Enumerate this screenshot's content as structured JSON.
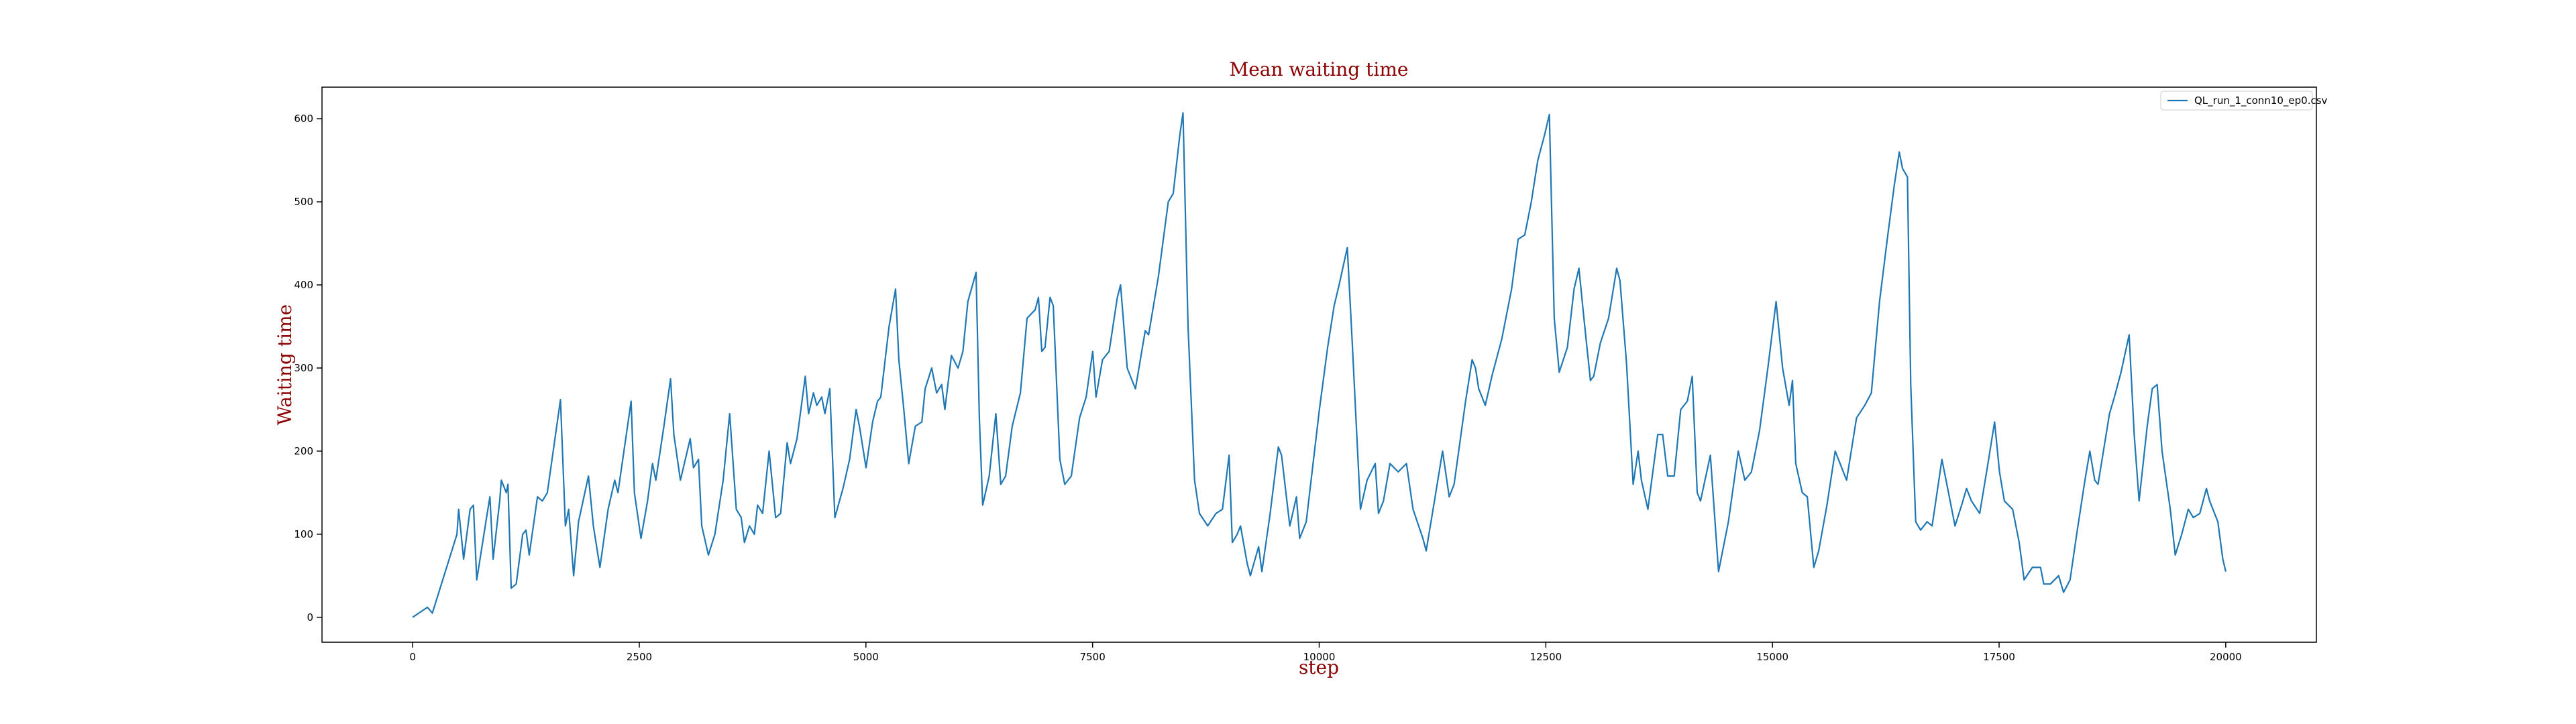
{
  "chart_data": {
    "type": "line",
    "title": "Mean waiting time",
    "x_label": "step",
    "y_label": "Waiting time",
    "x": [
      0,
      163,
      217,
      489,
      507,
      562,
      634,
      670,
      707,
      815,
      852,
      888,
      960,
      978,
      1033,
      1051,
      1087,
      1142,
      1214,
      1250,
      1286,
      1377,
      1431,
      1486,
      1631,
      1685,
      1721,
      1776,
      1830,
      1939,
      1993,
      2066,
      2156,
      2229,
      2265,
      2410,
      2446,
      2519,
      2591,
      2646,
      2682,
      2772,
      2845,
      2881,
      2954,
      3062,
      3098,
      3153,
      3189,
      3262,
      3334,
      3425,
      3497,
      3570,
      3624,
      3660,
      3715,
      3769,
      3805,
      3860,
      3932,
      3968,
      4004,
      4059,
      4131,
      4168,
      4240,
      4331,
      4367,
      4421,
      4458,
      4512,
      4548,
      4602,
      4657,
      4747,
      4820,
      4892,
      4928,
      5001,
      5074,
      5128,
      5164,
      5255,
      5327,
      5363,
      5418,
      5472,
      5545,
      5617,
      5653,
      5726,
      5780,
      5835,
      5871,
      5943,
      6016,
      6070,
      6125,
      6215,
      6251,
      6288,
      6360,
      6433,
      6487,
      6541,
      6614,
      6704,
      6777,
      6867,
      6903,
      6940,
      6976,
      7031,
      7067,
      7139,
      7193,
      7266,
      7357,
      7429,
      7502,
      7538,
      7610,
      7683,
      7773,
      7809,
      7882,
      7936,
      7973,
      8081,
      8118,
      8226,
      8335,
      8390,
      8462,
      8498,
      8553,
      8625,
      8679,
      8770,
      8861,
      8933,
      9006,
      9042,
      9096,
      9132,
      9205,
      9241,
      9332,
      9368,
      9459,
      9549,
      9585,
      9676,
      9749,
      9785,
      9857,
      10002,
      10093,
      10165,
      10220,
      10310,
      10365,
      10455,
      10528,
      10618,
      10654,
      10709,
      10781,
      10872,
      10963,
      11035,
      11144,
      11180,
      11271,
      11361,
      11434,
      11488,
      11615,
      11687,
      11724,
      11760,
      11832,
      11905,
      12014,
      12122,
      12195,
      12267,
      12340,
      12412,
      12485,
      12539,
      12593,
      12648,
      12738,
      12811,
      12865,
      12920,
      12992,
      13028,
      13101,
      13192,
      13282,
      13318,
      13391,
      13463,
      13518,
      13554,
      13626,
      13735,
      13789,
      13844,
      13916,
      13988,
      14061,
      14115,
      14170,
      14206,
      14315,
      14405,
      14514,
      14623,
      14695,
      14768,
      14858,
      14949,
      15040,
      15112,
      15184,
      15221,
      15257,
      15329,
      15384,
      15456,
      15510,
      15601,
      15692,
      15764,
      15818,
      15927,
      16018,
      16091,
      16181,
      16272,
      16344,
      16399,
      16435,
      16489,
      16525,
      16580,
      16634,
      16706,
      16761,
      16869,
      16942,
      17014,
      17087,
      17141,
      17195,
      17286,
      17377,
      17450,
      17504,
      17558,
      17649,
      17722,
      17776,
      17867,
      17957,
      17993,
      18066,
      18157,
      18211,
      18283,
      18356,
      18447,
      18501,
      18555,
      18591,
      18718,
      18772,
      18845,
      18935,
      18990,
      19044,
      19134,
      19189,
      19243,
      19297,
      19388,
      19443,
      19515,
      19587,
      19642,
      19714,
      19787,
      19823,
      19913,
      19968,
      20000
    ],
    "series": [
      {
        "name": "QL_run_1_conn10_ep0.csv",
        "color": "#1f77b4",
        "values": [
          0,
          12,
          5,
          100,
          130,
          70,
          130,
          135,
          45,
          120,
          145,
          70,
          140,
          165,
          150,
          160,
          35,
          40,
          100,
          105,
          75,
          145,
          140,
          150,
          262,
          110,
          130,
          50,
          115,
          170,
          110,
          60,
          130,
          165,
          150,
          260,
          150,
          95,
          140,
          185,
          165,
          230,
          287,
          220,
          165,
          215,
          180,
          190,
          110,
          75,
          100,
          165,
          245,
          130,
          120,
          90,
          110,
          100,
          135,
          125,
          200,
          160,
          120,
          125,
          210,
          185,
          215,
          290,
          245,
          270,
          255,
          265,
          245,
          275,
          120,
          155,
          190,
          250,
          230,
          180,
          235,
          260,
          265,
          350,
          395,
          310,
          250,
          185,
          230,
          235,
          275,
          300,
          270,
          280,
          250,
          315,
          300,
          320,
          380,
          415,
          240,
          135,
          170,
          245,
          160,
          170,
          230,
          270,
          360,
          370,
          385,
          320,
          325,
          385,
          375,
          190,
          160,
          170,
          240,
          265,
          320,
          265,
          310,
          320,
          385,
          400,
          300,
          285,
          275,
          345,
          340,
          410,
          500,
          510,
          580,
          607,
          350,
          165,
          125,
          110,
          125,
          130,
          195,
          90,
          100,
          110,
          65,
          50,
          85,
          55,
          125,
          205,
          195,
          110,
          145,
          95,
          115,
          250,
          325,
          375,
          400,
          445,
          330,
          130,
          165,
          185,
          125,
          140,
          185,
          175,
          185,
          130,
          95,
          80,
          140,
          200,
          145,
          160,
          260,
          310,
          300,
          275,
          255,
          290,
          335,
          395,
          455,
          460,
          500,
          550,
          580,
          605,
          360,
          295,
          325,
          395,
          420,
          360,
          285,
          290,
          330,
          360,
          420,
          405,
          305,
          160,
          200,
          165,
          130,
          220,
          220,
          170,
          170,
          250,
          260,
          290,
          150,
          140,
          195,
          55,
          115,
          200,
          165,
          175,
          225,
          300,
          380,
          300,
          255,
          285,
          185,
          150,
          145,
          60,
          80,
          135,
          200,
          180,
          165,
          240,
          255,
          270,
          380,
          460,
          520,
          560,
          540,
          530,
          280,
          115,
          105,
          115,
          110,
          190,
          150,
          110,
          135,
          155,
          140,
          125,
          185,
          235,
          175,
          140,
          130,
          90,
          45,
          60,
          60,
          40,
          40,
          50,
          30,
          45,
          100,
          165,
          200,
          165,
          160,
          245,
          265,
          295,
          340,
          220,
          140,
          230,
          275,
          280,
          200,
          130,
          75,
          100,
          130,
          120,
          125,
          155,
          140,
          115,
          70,
          55
        ]
      }
    ],
    "xlim": [
      -1000,
      21000
    ],
    "ylim": [
      -30,
      638
    ],
    "xticks": [
      0,
      2500,
      5000,
      7500,
      10000,
      12500,
      15000,
      17500,
      20000
    ],
    "yticks": [
      0,
      100,
      200,
      300,
      400,
      500,
      600
    ],
    "grid": false,
    "legend": "upper right"
  }
}
